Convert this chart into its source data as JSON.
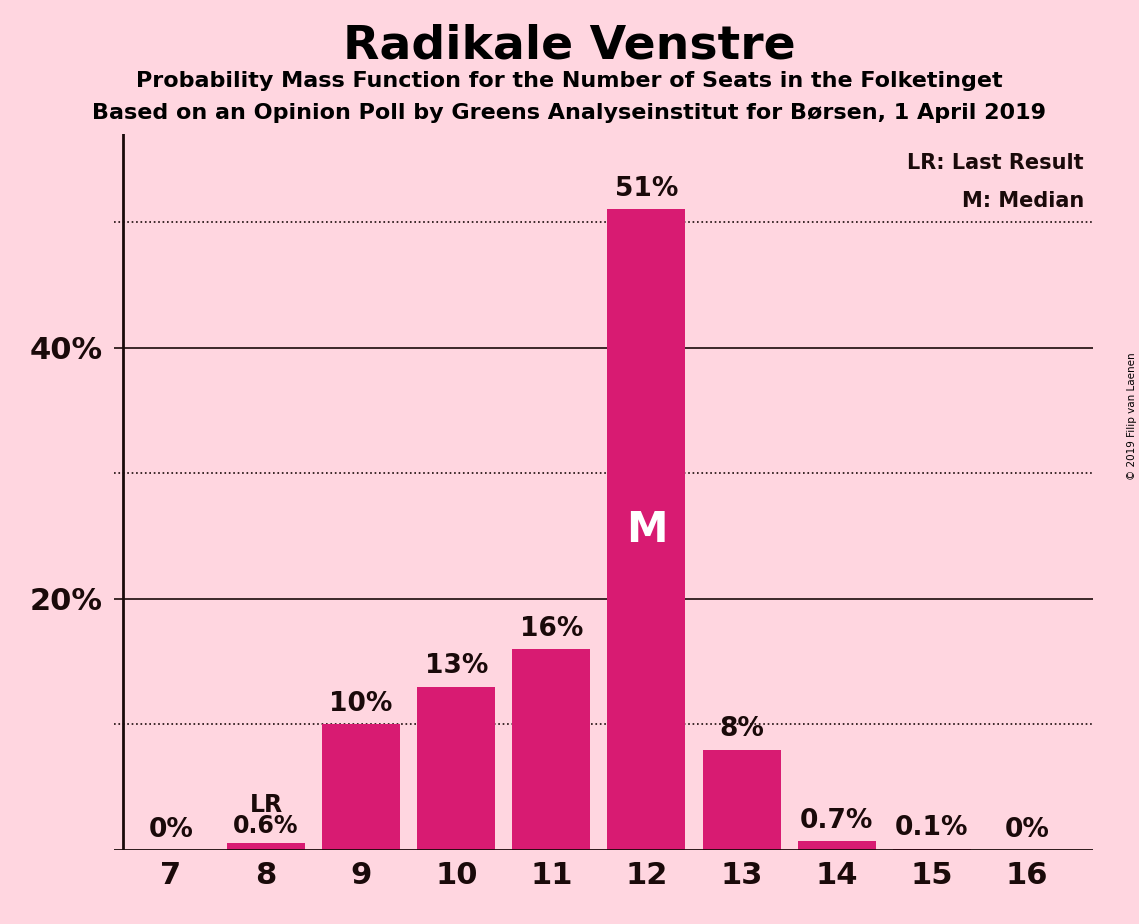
{
  "title": "Radikale Venstre",
  "subtitle1": "Probability Mass Function for the Number of Seats in the Folketinget",
  "subtitle2": "Based on an Opinion Poll by Greens Analyseinstitut for Børsen, 1 April 2019",
  "copyright": "© 2019 Filip van Laenen",
  "seats": [
    7,
    8,
    9,
    10,
    11,
    12,
    13,
    14,
    15,
    16
  ],
  "probabilities": [
    0.0,
    0.6,
    10.0,
    13.0,
    16.0,
    51.0,
    8.0,
    0.7,
    0.1,
    0.0
  ],
  "bar_color": "#D81B72",
  "background_color": "#FFD6E0",
  "text_color": "#1a0a0a",
  "label_color_outside": "#1a0a0a",
  "label_color_inside": "#FFFFFF",
  "last_result_seat": 8,
  "median_seat": 12,
  "ylim_max": 57,
  "solid_lines": [
    20,
    40
  ],
  "dotted_lines": [
    10,
    30,
    50
  ],
  "ytick_positions": [
    20,
    40
  ],
  "ytick_labels": [
    "20%",
    "40%"
  ],
  "legend_lr": "LR: Last Result",
  "legend_m": "M: Median",
  "bar_labels": [
    "0%",
    "0.6%",
    "10%",
    "13%",
    "16%",
    "51%",
    "8%",
    "0.7%",
    "0.1%",
    "0%"
  ]
}
